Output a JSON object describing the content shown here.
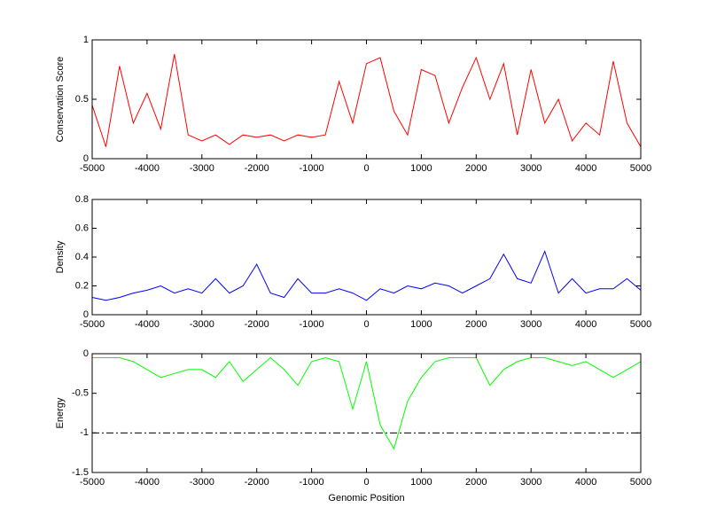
{
  "chart_data": [
    {
      "type": "line",
      "ylabel": "Conservation Score",
      "x": [
        -5000,
        -4750,
        -4500,
        -4250,
        -4000,
        -3750,
        -3500,
        -3250,
        -3000,
        -2750,
        -2500,
        -2250,
        -2000,
        -1750,
        -1500,
        -1250,
        -1000,
        -750,
        -500,
        -250,
        0,
        250,
        500,
        750,
        1000,
        1250,
        1500,
        1750,
        2000,
        2250,
        2500,
        2750,
        3000,
        3250,
        3500,
        3750,
        4000,
        4250,
        4500,
        4750,
        5000
      ],
      "series": [
        {
          "name": "Conservation Score",
          "color": "#ff0000",
          "values": [
            0.45,
            0.1,
            0.78,
            0.3,
            0.55,
            0.25,
            0.88,
            0.2,
            0.15,
            0.2,
            0.12,
            0.2,
            0.18,
            0.2,
            0.15,
            0.2,
            0.18,
            0.2,
            0.65,
            0.3,
            0.8,
            0.85,
            0.4,
            0.2,
            0.75,
            0.7,
            0.3,
            0.6,
            0.85,
            0.5,
            0.8,
            0.2,
            0.75,
            0.3,
            0.5,
            0.15,
            0.3,
            0.2,
            0.82,
            0.3,
            0.1
          ]
        }
      ],
      "xlim": [
        -5000,
        5000
      ],
      "xticks": [
        -5000,
        -4000,
        -3000,
        -2000,
        -1000,
        0,
        1000,
        2000,
        3000,
        4000,
        5000
      ],
      "ylim": [
        0,
        1
      ],
      "yticks": [
        0,
        0.5,
        1
      ]
    },
    {
      "type": "line",
      "ylabel": "Density",
      "x": [
        -5000,
        -4750,
        -4500,
        -4250,
        -4000,
        -3750,
        -3500,
        -3250,
        -3000,
        -2750,
        -2500,
        -2250,
        -2000,
        -1750,
        -1500,
        -1250,
        -1000,
        -750,
        -500,
        -250,
        0,
        250,
        500,
        750,
        1000,
        1250,
        1500,
        1750,
        2000,
        2250,
        2500,
        2750,
        3000,
        3250,
        3500,
        3750,
        4000,
        4250,
        4500,
        4750,
        5000
      ],
      "series": [
        {
          "name": "Density",
          "color": "#0000ff",
          "values": [
            0.12,
            0.1,
            0.12,
            0.15,
            0.17,
            0.2,
            0.15,
            0.18,
            0.15,
            0.25,
            0.15,
            0.2,
            0.35,
            0.15,
            0.12,
            0.25,
            0.15,
            0.15,
            0.18,
            0.15,
            0.1,
            0.18,
            0.15,
            0.2,
            0.18,
            0.22,
            0.2,
            0.15,
            0.2,
            0.25,
            0.42,
            0.25,
            0.22,
            0.44,
            0.15,
            0.25,
            0.15,
            0.18,
            0.18,
            0.25,
            0.17
          ]
        }
      ],
      "xlim": [
        -5000,
        5000
      ],
      "xticks": [
        -5000,
        -4000,
        -3000,
        -2000,
        -1000,
        0,
        1000,
        2000,
        3000,
        4000,
        5000
      ],
      "ylim": [
        0,
        0.8
      ],
      "yticks": [
        0,
        0.2,
        0.4,
        0.6,
        0.8
      ]
    },
    {
      "type": "line",
      "ylabel": "Energy",
      "xlabel": "Genomic Position",
      "x": [
        -5000,
        -4750,
        -4500,
        -4250,
        -4000,
        -3750,
        -3500,
        -3250,
        -3000,
        -2750,
        -2500,
        -2250,
        -2000,
        -1750,
        -1500,
        -1250,
        -1000,
        -750,
        -500,
        -250,
        0,
        250,
        500,
        750,
        1000,
        1250,
        1500,
        1750,
        2000,
        2250,
        2500,
        2750,
        3000,
        3250,
        3500,
        3750,
        4000,
        4250,
        4500,
        4750,
        5000
      ],
      "series": [
        {
          "name": "Energy",
          "color": "#00ff00",
          "values": [
            -0.05,
            -0.05,
            -0.05,
            -0.1,
            -0.2,
            -0.3,
            -0.25,
            -0.2,
            -0.2,
            -0.3,
            -0.1,
            -0.35,
            -0.2,
            -0.05,
            -0.2,
            -0.4,
            -0.1,
            -0.05,
            -0.1,
            -0.7,
            -0.1,
            -0.9,
            -1.2,
            -0.6,
            -0.3,
            -0.1,
            -0.05,
            -0.05,
            -0.05,
            -0.4,
            -0.2,
            -0.1,
            -0.05,
            -0.05,
            -0.1,
            -0.15,
            -0.1,
            -0.2,
            -0.3,
            -0.2,
            -0.1
          ]
        }
      ],
      "hline": -1,
      "xlim": [
        -5000,
        5000
      ],
      "xticks": [
        -5000,
        -4000,
        -3000,
        -2000,
        -1000,
        0,
        1000,
        2000,
        3000,
        4000,
        5000
      ],
      "ylim": [
        -1.5,
        0
      ],
      "yticks": [
        -1.5,
        -1,
        -0.5,
        0
      ]
    }
  ]
}
